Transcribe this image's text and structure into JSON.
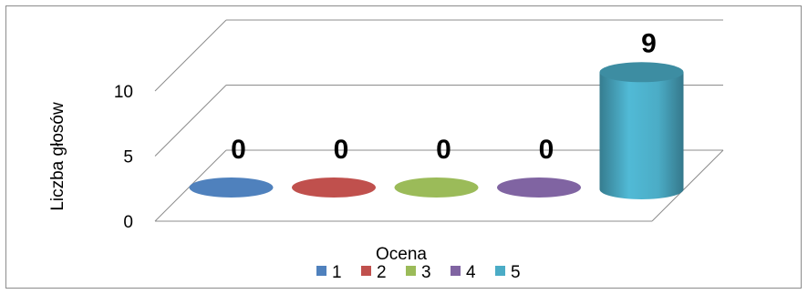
{
  "chart_data": {
    "type": "bar",
    "style": "3d-cylinder",
    "categories": [
      "1",
      "2",
      "3",
      "4",
      "5"
    ],
    "values": [
      0,
      0,
      0,
      0,
      9
    ],
    "data_labels": [
      "0",
      "0",
      "0",
      "0",
      "9"
    ],
    "colors": [
      "#4f81bd",
      "#c0504d",
      "#9bbb59",
      "#8064a2",
      "#4bacc6"
    ],
    "xlabel": "Ocena",
    "ylabel": "Liczba głosów",
    "ylim": [
      0,
      10
    ],
    "y_ticks": [
      "0",
      "5",
      "10"
    ],
    "grid": true,
    "legend": {
      "position": "bottom",
      "entries": [
        "1",
        "2",
        "3",
        "4",
        "5"
      ]
    }
  }
}
